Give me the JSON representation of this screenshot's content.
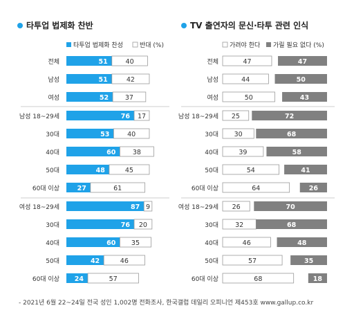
{
  "chart_data": [
    {
      "type": "bar",
      "stacked": true,
      "orientation": "horizontal",
      "title": "타투업 법제화 찬반",
      "legend": [
        "타투업 법제화 찬성",
        "반대 (%)"
      ],
      "colors": [
        "#1fa2e8",
        "#ffffff"
      ],
      "categories": [
        "전체",
        "남성",
        "여성",
        "남성 18~29세",
        "30대",
        "40대",
        "50대",
        "60대 이상",
        "여성 18~29세",
        "30대",
        "40대",
        "50대",
        "60대 이상"
      ],
      "series": [
        {
          "name": "타투업 법제화 찬성",
          "values": [
            51,
            51,
            52,
            76,
            53,
            60,
            48,
            27,
            87,
            76,
            60,
            42,
            24
          ]
        },
        {
          "name": "반대 (%)",
          "values": [
            40,
            42,
            37,
            17,
            40,
            38,
            45,
            61,
            9,
            20,
            35,
            46,
            57
          ]
        }
      ],
      "xlim": [
        0,
        100
      ]
    },
    {
      "type": "bar",
      "stacked": true,
      "orientation": "horizontal",
      "title": "TV 출연자의 문신·타투 관련 인식",
      "legend": [
        "가려야 한다",
        "가릴 필요 없다 (%)"
      ],
      "colors": [
        "#ffffff",
        "#808080"
      ],
      "categories": [
        "전체",
        "남성",
        "여성",
        "남성 18~29세",
        "30대",
        "40대",
        "50대",
        "60대 이상",
        "여성 18~29세",
        "30대",
        "40대",
        "50대",
        "60대 이상"
      ],
      "series": [
        {
          "name": "가려야 한다",
          "values": [
            47,
            44,
            50,
            25,
            30,
            39,
            54,
            64,
            26,
            32,
            46,
            57,
            68
          ]
        },
        {
          "name": "가릴 필요 없다 (%)",
          "values": [
            47,
            50,
            43,
            72,
            68,
            58,
            41,
            26,
            70,
            68,
            48,
            35,
            18
          ]
        }
      ],
      "xlim": [
        0,
        100
      ]
    }
  ],
  "footnote": "- 2021년 6월 22~24일 전국 성인 1,002명 전화조사, 한국갤럽 데일리 오피니언 제453호 www.gallup.co.kr"
}
